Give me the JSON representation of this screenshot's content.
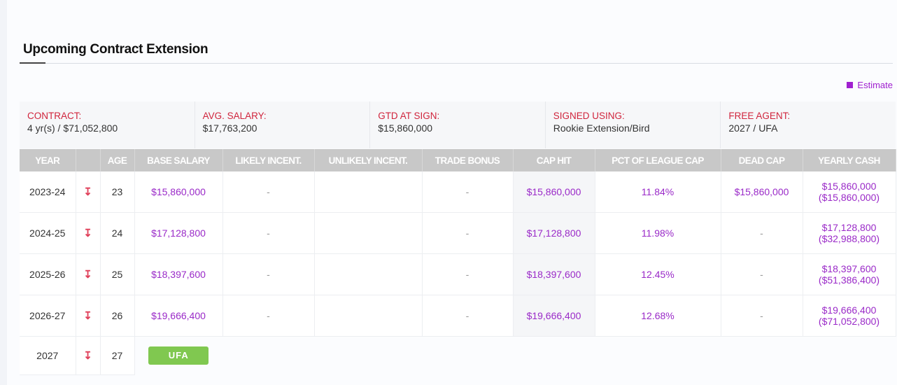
{
  "section_title": "Upcoming Contract Extension",
  "legend": {
    "label": "Estimate",
    "color": "#a020d0"
  },
  "info": [
    {
      "label": "CONTRACT:",
      "value": "4 yr(s) / $71,052,800"
    },
    {
      "label": "AVG. SALARY:",
      "value": "$17,763,200"
    },
    {
      "label": "GTD AT SIGN:",
      "value": "$15,860,000"
    },
    {
      "label": "SIGNED USING:",
      "value": "Rookie Extension/Bird"
    },
    {
      "label": "FREE AGENT:",
      "value": "2027 / UFA"
    }
  ],
  "columns": [
    "YEAR",
    "",
    "AGE",
    "BASE SALARY",
    "LIKELY INCENT.",
    "UNLIKELY INCENT.",
    "TRADE BONUS",
    "CAP HIT",
    "PCT OF LEAGUE CAP",
    "DEAD CAP",
    "YEARLY CASH"
  ],
  "rows": [
    {
      "year": "2023-24",
      "age": "23",
      "base": "$15,860,000",
      "likely": "-",
      "unlikely": "",
      "trade": "-",
      "cap_hit": "$15,860,000",
      "pct": "11.84%",
      "dead": "$15,860,000",
      "cash": "$15,860,000",
      "cash_cum": "($15,860,000)"
    },
    {
      "year": "2024-25",
      "age": "24",
      "base": "$17,128,800",
      "likely": "-",
      "unlikely": "",
      "trade": "-",
      "cap_hit": "$17,128,800",
      "pct": "11.98%",
      "dead": "-",
      "cash": "$17,128,800",
      "cash_cum": "($32,988,800)"
    },
    {
      "year": "2025-26",
      "age": "25",
      "base": "$18,397,600",
      "likely": "-",
      "unlikely": "",
      "trade": "-",
      "cap_hit": "$18,397,600",
      "pct": "12.45%",
      "dead": "-",
      "cash": "$18,397,600",
      "cash_cum": "($51,386,400)"
    },
    {
      "year": "2026-27",
      "age": "26",
      "base": "$19,666,400",
      "likely": "-",
      "unlikely": "",
      "trade": "-",
      "cap_hit": "$19,666,400",
      "pct": "12.68%",
      "dead": "-",
      "cash": "$19,666,400",
      "cash_cum": "($71,052,800)"
    }
  ],
  "final_row": {
    "year": "2027",
    "age": "27",
    "badge": "UFA",
    "badge_color": "#80c850"
  },
  "icons": {
    "row_arrow": "arrow-down-icon"
  }
}
